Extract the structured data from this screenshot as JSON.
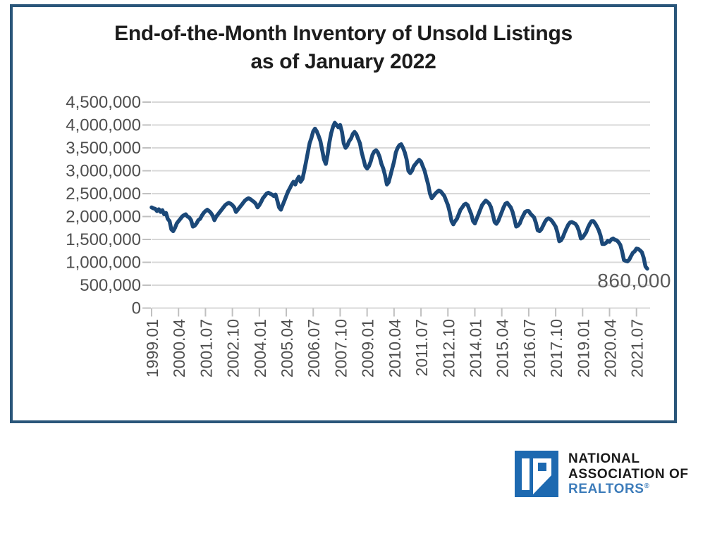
{
  "chart": {
    "title_line1": "End-of-the-Month Inventory of Unsold Listings",
    "title_line2": "as of January 2022",
    "annotation_label": "860,000"
  },
  "chart_data": {
    "type": "line",
    "title": "End-of-the-Month Inventory of Unsold Listings as of January 2022",
    "series_name": "End-of-the-month inventory of unsold listings",
    "x_unit": "month",
    "x_start": "1999.01",
    "x_end": "2022.01",
    "x_tick_interval_months": 15,
    "x_tick_labels": [
      "1999.01",
      "2000.04",
      "2001.07",
      "2002.10",
      "2004.01",
      "2005.04",
      "2006.07",
      "2007.10",
      "2009.01",
      "2010.04",
      "2011.07",
      "2012.10",
      "2014.01",
      "2015.04",
      "2016.07",
      "2017.10",
      "2019.01",
      "2020.04",
      "2021.07"
    ],
    "y_tick_labels": [
      "4,500,000",
      "4,000,000",
      "3,500,000",
      "3,000,000",
      "2,500,000",
      "2,000,000",
      "1,500,000",
      "1,000,000",
      "500,000",
      "0"
    ],
    "ylim": [
      0,
      4500000
    ],
    "gridline_step": 500000,
    "grid": "horizontal",
    "legend": "none",
    "annotation": {
      "label": "860,000",
      "value": 860000,
      "x": "2022.01"
    },
    "values_millions": [
      2.2,
      2.18,
      2.17,
      2.12,
      2.16,
      2.1,
      2.14,
      2.05,
      2.08,
      1.95,
      1.9,
      1.72,
      1.68,
      1.75,
      1.85,
      1.9,
      1.95,
      2.0,
      2.03,
      2.05,
      2.0,
      1.98,
      1.92,
      1.78,
      1.8,
      1.85,
      1.92,
      1.95,
      2.02,
      2.08,
      2.12,
      2.15,
      2.12,
      2.08,
      2.02,
      1.92,
      2.0,
      2.05,
      2.1,
      2.15,
      2.2,
      2.25,
      2.28,
      2.3,
      2.28,
      2.25,
      2.2,
      2.1,
      2.15,
      2.2,
      2.25,
      2.3,
      2.35,
      2.38,
      2.4,
      2.38,
      2.35,
      2.32,
      2.28,
      2.2,
      2.25,
      2.32,
      2.4,
      2.45,
      2.5,
      2.52,
      2.5,
      2.48,
      2.45,
      2.48,
      2.35,
      2.2,
      2.15,
      2.25,
      2.35,
      2.45,
      2.55,
      2.62,
      2.7,
      2.76,
      2.7,
      2.8,
      2.87,
      2.76,
      2.82,
      3.0,
      3.2,
      3.4,
      3.6,
      3.72,
      3.86,
      3.92,
      3.86,
      3.76,
      3.65,
      3.45,
      3.25,
      3.15,
      3.35,
      3.62,
      3.82,
      3.96,
      4.05,
      4.0,
      3.95,
      4.0,
      3.85,
      3.6,
      3.5,
      3.55,
      3.65,
      3.7,
      3.8,
      3.85,
      3.8,
      3.7,
      3.6,
      3.4,
      3.25,
      3.1,
      3.05,
      3.1,
      3.2,
      3.35,
      3.42,
      3.45,
      3.4,
      3.3,
      3.15,
      3.05,
      2.9,
      2.7,
      2.75,
      2.9,
      3.05,
      3.2,
      3.4,
      3.5,
      3.56,
      3.58,
      3.5,
      3.4,
      3.25,
      3.0,
      2.95,
      3.0,
      3.1,
      3.15,
      3.2,
      3.24,
      3.2,
      3.1,
      3.0,
      2.85,
      2.7,
      2.5,
      2.4,
      2.45,
      2.5,
      2.54,
      2.57,
      2.55,
      2.5,
      2.45,
      2.35,
      2.25,
      2.1,
      1.9,
      1.83,
      1.9,
      1.95,
      2.05,
      2.15,
      2.2,
      2.26,
      2.28,
      2.25,
      2.15,
      2.05,
      1.9,
      1.85,
      1.95,
      2.05,
      2.15,
      2.25,
      2.3,
      2.35,
      2.32,
      2.28,
      2.2,
      2.05,
      1.88,
      1.84,
      1.9,
      2.0,
      2.1,
      2.2,
      2.28,
      2.3,
      2.25,
      2.2,
      2.1,
      1.95,
      1.78,
      1.8,
      1.85,
      1.95,
      2.03,
      2.1,
      2.12,
      2.12,
      2.06,
      2.02,
      1.98,
      1.86,
      1.7,
      1.68,
      1.72,
      1.8,
      1.88,
      1.94,
      1.96,
      1.94,
      1.9,
      1.84,
      1.78,
      1.65,
      1.46,
      1.48,
      1.55,
      1.65,
      1.74,
      1.82,
      1.87,
      1.88,
      1.86,
      1.84,
      1.78,
      1.68,
      1.52,
      1.54,
      1.6,
      1.66,
      1.76,
      1.84,
      1.9,
      1.9,
      1.85,
      1.78,
      1.7,
      1.58,
      1.4,
      1.4,
      1.42,
      1.47,
      1.45,
      1.5,
      1.52,
      1.49,
      1.48,
      1.44,
      1.38,
      1.24,
      1.05,
      1.03,
      1.02,
      1.06,
      1.14,
      1.21,
      1.24,
      1.3,
      1.29,
      1.26,
      1.22,
      1.1,
      0.91,
      0.86
    ],
    "colors": {
      "line": "#1b4878",
      "gridline": "#d8d8d8",
      "tick": "#c0c0c0",
      "axis_text": "#4f4f4f",
      "title_text": "#1c1c1c",
      "annotation_text": "#595959",
      "frame_border": "#2a567a"
    }
  },
  "logo": {
    "line1": "NATIONAL",
    "line2": "ASSOCIATION OF",
    "line3": "REALTORS",
    "registered_mark": "®",
    "colors": {
      "box_blue": "#1d69b0",
      "realtors_blue": "#3d7cba",
      "text_black": "#1a1a1a"
    }
  }
}
